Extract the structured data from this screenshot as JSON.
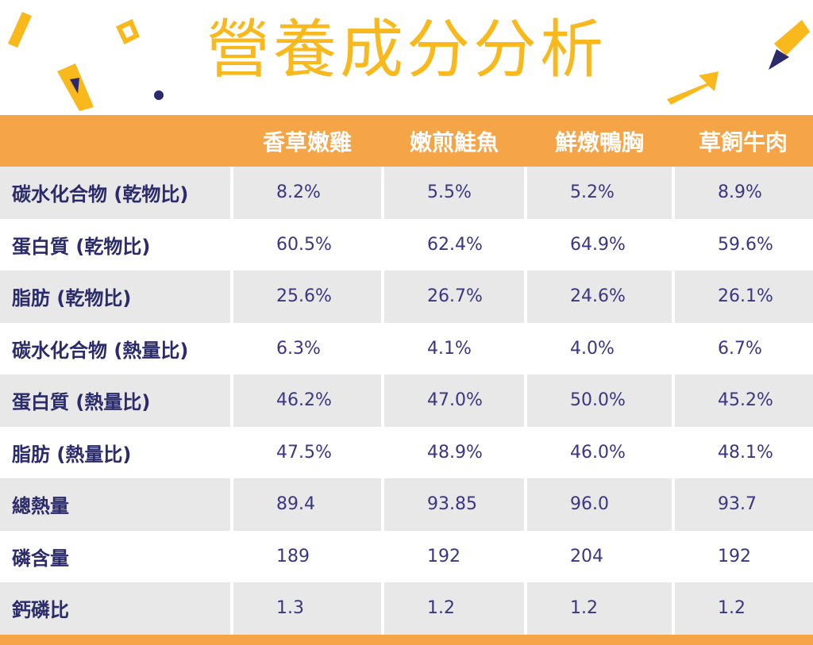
{
  "title": "營養成分分析",
  "table": {
    "columns": [
      "香草嫩雞",
      "嫩煎鮭魚",
      "鮮燉鴨胸",
      "草飼牛肉"
    ],
    "rows": [
      {
        "label": "碳水化合物 (乾物比)",
        "cells": [
          "8.2%",
          "5.5%",
          "5.2%",
          "8.9%"
        ]
      },
      {
        "label": "蛋白質 (乾物比)",
        "cells": [
          "60.5%",
          "62.4%",
          "64.9%",
          "59.6%"
        ]
      },
      {
        "label": "脂肪 (乾物比)",
        "cells": [
          "25.6%",
          "26.7%",
          "24.6%",
          "26.1%"
        ]
      },
      {
        "label": "碳水化合物 (熱量比)",
        "cells": [
          "6.3%",
          "4.1%",
          "4.0%",
          "6.7%"
        ]
      },
      {
        "label": "蛋白質 (熱量比)",
        "cells": [
          "46.2%",
          "47.0%",
          "50.0%",
          "45.2%"
        ]
      },
      {
        "label": "脂肪 (熱量比)",
        "cells": [
          "47.5%",
          "48.9%",
          "46.0%",
          "48.1%"
        ]
      },
      {
        "label": "總熱量",
        "cells": [
          "89.4",
          "93.85",
          "96.0",
          "93.7"
        ]
      },
      {
        "label": "磷含量",
        "cells": [
          "189",
          "192",
          "204",
          "192"
        ]
      },
      {
        "label": "鈣磷比",
        "cells": [
          "1.3",
          "1.2",
          "1.2",
          "1.2"
        ]
      }
    ]
  }
}
